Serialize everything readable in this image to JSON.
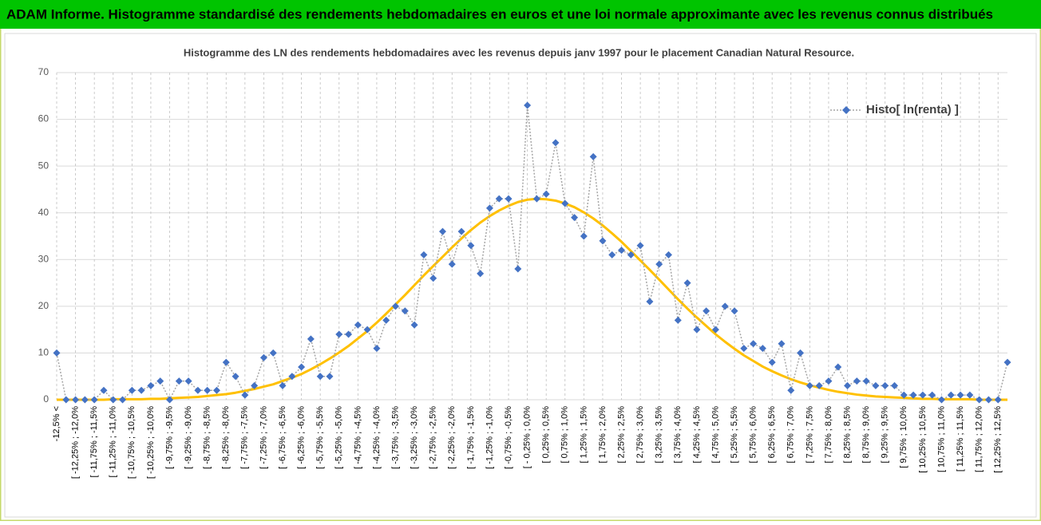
{
  "header": {
    "title": "ADAM Informe. Histogramme standardisé des rendements hebdomadaires en euros et une loi normale approximante avec les revenus connus distribués"
  },
  "chart_data": {
    "type": "line",
    "title": "Histogramme des LN des rendements hebdomadaires avec les revenus depuis janv 1997 pour le placement Canadian Natural Resource.",
    "categories": [
      "-12,5% <",
      null,
      "[ -12,25% ; -12,0%",
      null,
      "[ -11,75% ; -11,5%",
      null,
      "[ -11,25% ; -11,0%",
      null,
      "[ -10,75% ; -10,5%",
      null,
      "[ -10,25% ; -10,0%",
      null,
      "[ -9,75% ; -9,5%",
      null,
      "[ -9,25% ; -9,0%",
      null,
      "[ -8,75% ; -8,5%",
      null,
      "[ -8,25% ; -8,0%",
      null,
      "[ -7,75% ; -7,5%",
      null,
      "[ -7,25% ; -7,0%",
      null,
      "[ -6,75% ; -6,5%",
      null,
      "[ -6,25% ; -6,0%",
      null,
      "[ -5,75% ; -5,5%",
      null,
      "[ -5,25% ; -5,0%",
      null,
      "[ -4,75% ; -4,5%",
      null,
      "[ -4,25% ; -4,0%",
      null,
      "[ -3,75% ; -3,5%",
      null,
      "[ -3,25% ; -3,0%",
      null,
      "[ -2,75% ; -2,5%",
      null,
      "[ -2,25% ; -2,0%",
      null,
      "[ -1,75% ; -1,5%",
      null,
      "[ -1,25% ; -1,0%",
      null,
      "[ -0,75% ; -0,5%",
      null,
      "[ - 0,25% ; 0,0%",
      null,
      "[ 0,25% ; 0,5%",
      null,
      "[ 0,75% ; 1,0%",
      null,
      "[ 1,25% ; 1,5%",
      null,
      "[ 1,75% ; 2,0%",
      null,
      "[ 2,25% ; 2,5%",
      null,
      "[ 2,75% ; 3,0%",
      null,
      "[ 3,25% ; 3,5%",
      null,
      "[ 3,75% ; 4,0%",
      null,
      "[ 4,25% ; 4,5%",
      null,
      "[ 4,75% ; 5,0%",
      null,
      "[ 5,25% ; 5,5%",
      null,
      "[ 5,75% ; 6,0%",
      null,
      "[ 6,25% ; 6,5%",
      null,
      "[ 6,75% ; 7,0%",
      null,
      "[ 7,25% ; 7,5%",
      null,
      "[ 7,75% ; 8,0%",
      null,
      "[ 8,25% ; 8,5%",
      null,
      "[ 8,75% ; 9,0%",
      null,
      "[ 9,25% ; 9,5%",
      null,
      "[ 9,75% ; 10,0%",
      null,
      "[ 10,25% ; 10,5%",
      null,
      "[ 10,75% ; 11,0%",
      null,
      "[ 11,25% ; 11,5%",
      null,
      "[ 11,75% ; 12,0%",
      null,
      "[ 12,25% ; 12,5%",
      null
    ],
    "series": [
      {
        "name": "Histo[ ln(renta) ]",
        "color": "#4472c4",
        "marker": "diamond",
        "line_style": "dotted",
        "line_color": "#a6a6a6",
        "values": [
          10,
          0,
          0,
          0,
          0,
          2,
          0,
          0,
          2,
          2,
          3,
          4,
          0,
          4,
          4,
          2,
          2,
          2,
          8,
          5,
          1,
          3,
          9,
          10,
          3,
          5,
          7,
          13,
          5,
          5,
          14,
          14,
          16,
          15,
          11,
          17,
          20,
          19,
          16,
          31,
          26,
          36,
          29,
          36,
          33,
          27,
          41,
          43,
          43,
          28,
          63,
          43,
          44,
          55,
          42,
          39,
          35,
          52,
          34,
          31,
          32,
          31,
          33,
          21,
          29,
          31,
          17,
          25,
          15,
          19,
          15,
          20,
          19,
          11,
          12,
          11,
          8,
          12,
          2,
          10,
          3,
          3,
          4,
          7,
          3,
          4,
          4,
          3,
          3,
          3,
          1,
          1,
          1,
          1,
          0,
          1,
          1,
          1,
          0,
          0,
          0,
          8
        ]
      },
      {
        "color": "#ffc000",
        "line_style": "solid",
        "values": [
          0,
          0,
          0,
          0,
          0,
          0,
          0.1,
          0.1,
          0.1,
          0.1,
          0.2,
          0.2,
          0.3,
          0.4,
          0.5,
          0.6,
          0.8,
          1.0,
          1.2,
          1.5,
          1.9,
          2.3,
          2.8,
          3.3,
          4.0,
          4.7,
          5.5,
          6.5,
          7.6,
          8.8,
          10.1,
          11.5,
          13.1,
          14.7,
          16.5,
          18.4,
          20.4,
          22.4,
          24.5,
          26.6,
          28.6,
          30.6,
          32.6,
          34.5,
          36.3,
          37.9,
          39.3,
          40.5,
          41.5,
          42.3,
          42.8,
          43.0,
          42.9,
          42.6,
          42.0,
          41.2,
          40.1,
          38.8,
          37.3,
          35.6,
          33.8,
          31.8,
          29.8,
          27.8,
          25.7,
          23.6,
          21.5,
          19.5,
          17.6,
          15.8,
          14.0,
          12.4,
          10.9,
          9.5,
          8.3,
          7.1,
          6.1,
          5.2,
          4.4,
          3.7,
          3.1,
          2.6,
          2.1,
          1.7,
          1.4,
          1.1,
          0.9,
          0.7,
          0.6,
          0.5,
          0.4,
          0.3,
          0.2,
          0.2,
          0.1,
          0.1,
          0.1,
          0.1,
          0,
          0,
          0,
          0
        ]
      }
    ],
    "ylim": [
      0,
      70
    ],
    "yticks": [
      0,
      10,
      20,
      30,
      40,
      50,
      60,
      70
    ],
    "grid": true,
    "legend": "upper right"
  }
}
